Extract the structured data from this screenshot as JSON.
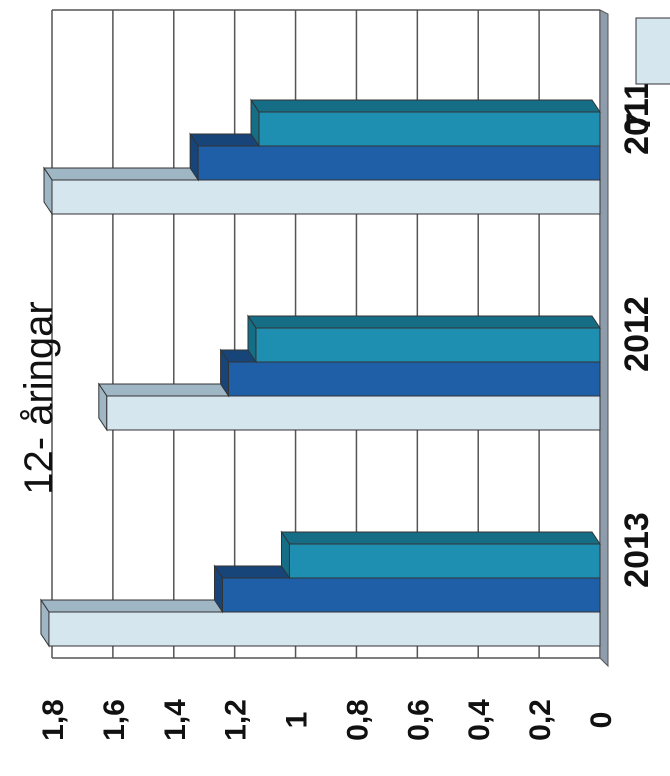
{
  "chart_data": {
    "type": "bar",
    "orientation": "rotated-90",
    "title": "12- åringar",
    "categories": [
      "2011",
      "2012",
      "2013"
    ],
    "series": [
      {
        "values": [
          1.8,
          1.62,
          1.81
        ]
      },
      {
        "values": [
          1.32,
          1.22,
          1.24
        ]
      },
      {
        "values": [
          1.12,
          1.13,
          1.02
        ]
      }
    ],
    "ylim": [
      0,
      1.8
    ],
    "yticks": [
      "0",
      "0,2",
      "0,4",
      "0,6",
      "0,8",
      "1",
      "1,2",
      "1,4",
      "1,6",
      "1,8"
    ],
    "legend_partial_label": "7",
    "grid": true,
    "colors": [
      "#d5e6ef",
      "#1f5fa8",
      "#1e8fb0"
    ],
    "top_colors": [
      "#9fb6c4",
      "#17457a",
      "#156d86"
    ]
  }
}
